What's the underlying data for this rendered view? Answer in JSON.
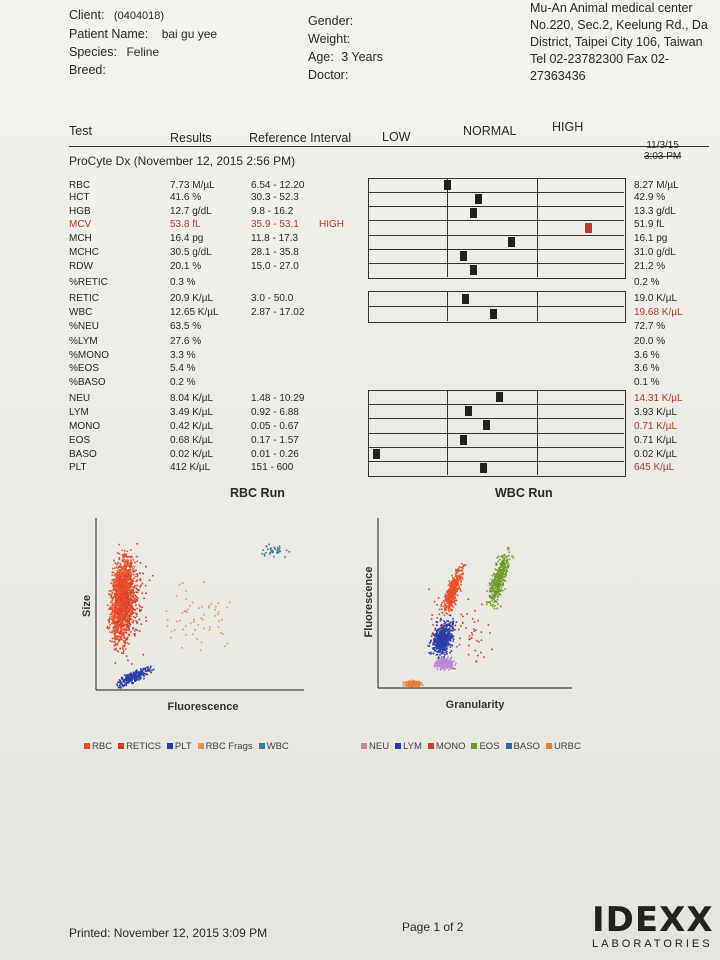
{
  "patient": {
    "client_label": "Client:",
    "client_value": "(0404018)",
    "name_label": "Patient Name:",
    "name_value": "bai gu yee",
    "species_label": "Species:",
    "species_value": "Feline",
    "breed_label": "Breed:",
    "gender_label": "Gender:",
    "weight_label": "Weight:",
    "age_label": "Age:",
    "age_value": "3 Years",
    "doctor_label": "Doctor:"
  },
  "clinic": {
    "line1": "Mu-An Animal medical center",
    "line2": "No.220, Sec.2, Keelung Rd., Da",
    "line3": "District, Taipei City 106, Taiwan",
    "line4": "Tel 02-23782300  Fax 02-",
    "line5": "27363436"
  },
  "columns": {
    "test": "Test",
    "results": "Results",
    "reference": "Reference Interval",
    "low": "LOW",
    "normal": "NORMAL",
    "high": "HIGH"
  },
  "run_title": "ProCyte Dx (November 12, 2015 2:56 PM)",
  "prior": {
    "date": "11/3/15",
    "time": "3:03 PM"
  },
  "rows": [
    {
      "test": "RBC",
      "result": "7.73 M/µL",
      "ref": "6.54 - 12.20",
      "flag": "",
      "prior": "8.27 M/µL"
    },
    {
      "test": "HCT",
      "result": "41.6 %",
      "ref": "30.3 - 52.3",
      "flag": "",
      "prior": "42.9 %"
    },
    {
      "test": "HGB",
      "result": "12.7 g/dL",
      "ref": "9.8 - 16.2",
      "flag": "",
      "prior": "13.3 g/dL"
    },
    {
      "test": "MCV",
      "result": "53.8 fL",
      "ref": "35.9 - 53.1",
      "flag": "HIGH",
      "prior": "51.9 fL"
    },
    {
      "test": "MCH",
      "result": "16.4 pg",
      "ref": "11.8 - 17.3",
      "flag": "",
      "prior": "16.1 pg"
    },
    {
      "test": "MCHC",
      "result": "30.5 g/dL",
      "ref": "28.1 - 35.8",
      "flag": "",
      "prior": "31.0 g/dL"
    },
    {
      "test": "RDW",
      "result": "20.1 %",
      "ref": "15.0 - 27.0",
      "flag": "",
      "prior": "21.2 %"
    },
    {
      "test": "%RETIC",
      "result": "0.3 %",
      "ref": "",
      "flag": "",
      "prior": "0.2 %"
    },
    {
      "test": "RETIC",
      "result": "20.9 K/µL",
      "ref": "3.0 - 50.0",
      "flag": "",
      "prior": "19.0 K/µL"
    },
    {
      "test": "WBC",
      "result": "12.65 K/µL",
      "ref": "2.87 - 17.02",
      "flag": "",
      "prior": "19.68 K/µL",
      "prior_red": true
    },
    {
      "test": "%NEU",
      "result": "63.5 %",
      "ref": "",
      "flag": "",
      "prior": "72.7 %"
    },
    {
      "test": "%LYM",
      "result": "27.6 %",
      "ref": "",
      "flag": "",
      "prior": "20.0 %"
    },
    {
      "test": "%MONO",
      "result": "3.3 %",
      "ref": "",
      "flag": "",
      "prior": "3.6 %"
    },
    {
      "test": "%EOS",
      "result": "5.4 %",
      "ref": "",
      "flag": "",
      "prior": "3.6 %"
    },
    {
      "test": "%BASO",
      "result": "0.2 %",
      "ref": "",
      "flag": "",
      "prior": "0.1 %"
    },
    {
      "test": "NEU",
      "result": "8.04 K/µL",
      "ref": "1.48 - 10.29",
      "flag": "",
      "prior": "14.31 K/µL",
      "prior_red": true
    },
    {
      "test": "LYM",
      "result": "3.49 K/µL",
      "ref": "0.92 - 6.88",
      "flag": "",
      "prior": "3.93 K/µL"
    },
    {
      "test": "MONO",
      "result": "0.42 K/µL",
      "ref": "0.05 - 0.67",
      "flag": "",
      "prior": "0.71 K/µL",
      "prior_red": true
    },
    {
      "test": "EOS",
      "result": "0.68 K/µL",
      "ref": "0.17 - 1.57",
      "flag": "",
      "prior": "0.71 K/µL"
    },
    {
      "test": "BASO",
      "result": "0.02 K/µL",
      "ref": "0.01 - 0.26",
      "flag": "",
      "prior": "0.02 K/µL"
    },
    {
      "test": "PLT",
      "result": "412 K/µL",
      "ref": "151 - 600",
      "flag": "",
      "prior": "645 K/µL",
      "prior_red": true
    }
  ],
  "gauge_levels": {
    "note_units": "fraction across LOW|NORMAL|HIGH track (0=left,1=right)",
    "RBC": 0.31,
    "HCT": 0.43,
    "HGB": 0.41,
    "MCV": 0.86,
    "MCH": 0.56,
    "MCHC": 0.37,
    "RDW": 0.41,
    "RETIC": 0.38,
    "WBC": 0.49,
    "NEU": 0.51,
    "LYM": 0.39,
    "MONO": 0.46,
    "EOS": 0.37,
    "BASO": 0.03,
    "PLT": 0.45
  },
  "rbc_plot": {
    "title": "RBC Run",
    "y_label": "Size",
    "x_label": "Fluorescence",
    "legend": [
      {
        "label": "RBC",
        "color": "#e8502a"
      },
      {
        "label": "RETICS",
        "color": "#d43a2e"
      },
      {
        "label": "PLT",
        "color": "#2b3fa8"
      },
      {
        "label": "RBC Frags",
        "color": "#e8905a"
      },
      {
        "label": "WBC",
        "color": "#3a7aa0"
      }
    ]
  },
  "wbc_plot": {
    "title": "WBC Run",
    "y_label": "Fluorescence",
    "x_label": "Granularity",
    "legend": [
      {
        "label": "NEU",
        "color": "#c78aa0"
      },
      {
        "label": "LYM",
        "color": "#2b3fa8"
      },
      {
        "label": "MONO",
        "color": "#d0402e"
      },
      {
        "label": "EOS",
        "color": "#6f9a2a"
      },
      {
        "label": "BASO",
        "color": "#2f6fa0"
      },
      {
        "label": "URBC",
        "color": "#e8803a"
      }
    ]
  },
  "footer": {
    "printed": "Printed: November 12, 2015 3:09 PM",
    "page": "Page 1 of 2",
    "brand": "IDEXX",
    "brand_sub": "LABORATORIES"
  }
}
